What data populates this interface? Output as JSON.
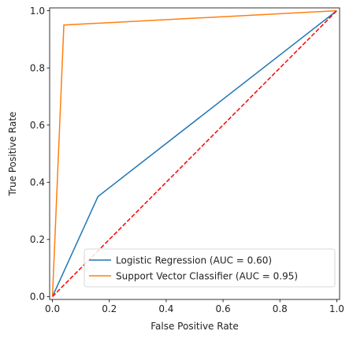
{
  "chart_data": {
    "type": "line",
    "title": "",
    "xlabel": "False Positive Rate",
    "ylabel": "True Positive Rate",
    "xlim": [
      -0.01,
      1.01
    ],
    "ylim": [
      -0.01,
      1.01
    ],
    "x_ticks": [
      0.0,
      0.2,
      0.4,
      0.6,
      0.8,
      1.0
    ],
    "y_ticks": [
      0.0,
      0.2,
      0.4,
      0.6,
      0.8,
      1.0
    ],
    "x_tick_labels": [
      "0.0",
      "0.2",
      "0.4",
      "0.6",
      "0.8",
      "1.0"
    ],
    "y_tick_labels": [
      "0.0",
      "0.2",
      "0.4",
      "0.6",
      "0.8",
      "1.0"
    ],
    "grid": false,
    "legend_position": "bottom-right",
    "series": [
      {
        "name": "Logistic Regression (AUC = 0.60)",
        "color": "#1f77b4",
        "style": "solid",
        "x": [
          0.0,
          0.16,
          1.0
        ],
        "y": [
          0.0,
          0.35,
          1.0
        ]
      },
      {
        "name": "Support Vector Classifier (AUC = 0.95)",
        "color": "#ff7f0e",
        "style": "solid",
        "x": [
          0.0,
          0.04,
          1.0
        ],
        "y": [
          0.0,
          0.95,
          1.0
        ]
      },
      {
        "color": "#ff0000",
        "style": "dashed",
        "x": [
          0.0,
          1.0
        ],
        "y": [
          0.0,
          1.0
        ]
      }
    ]
  }
}
